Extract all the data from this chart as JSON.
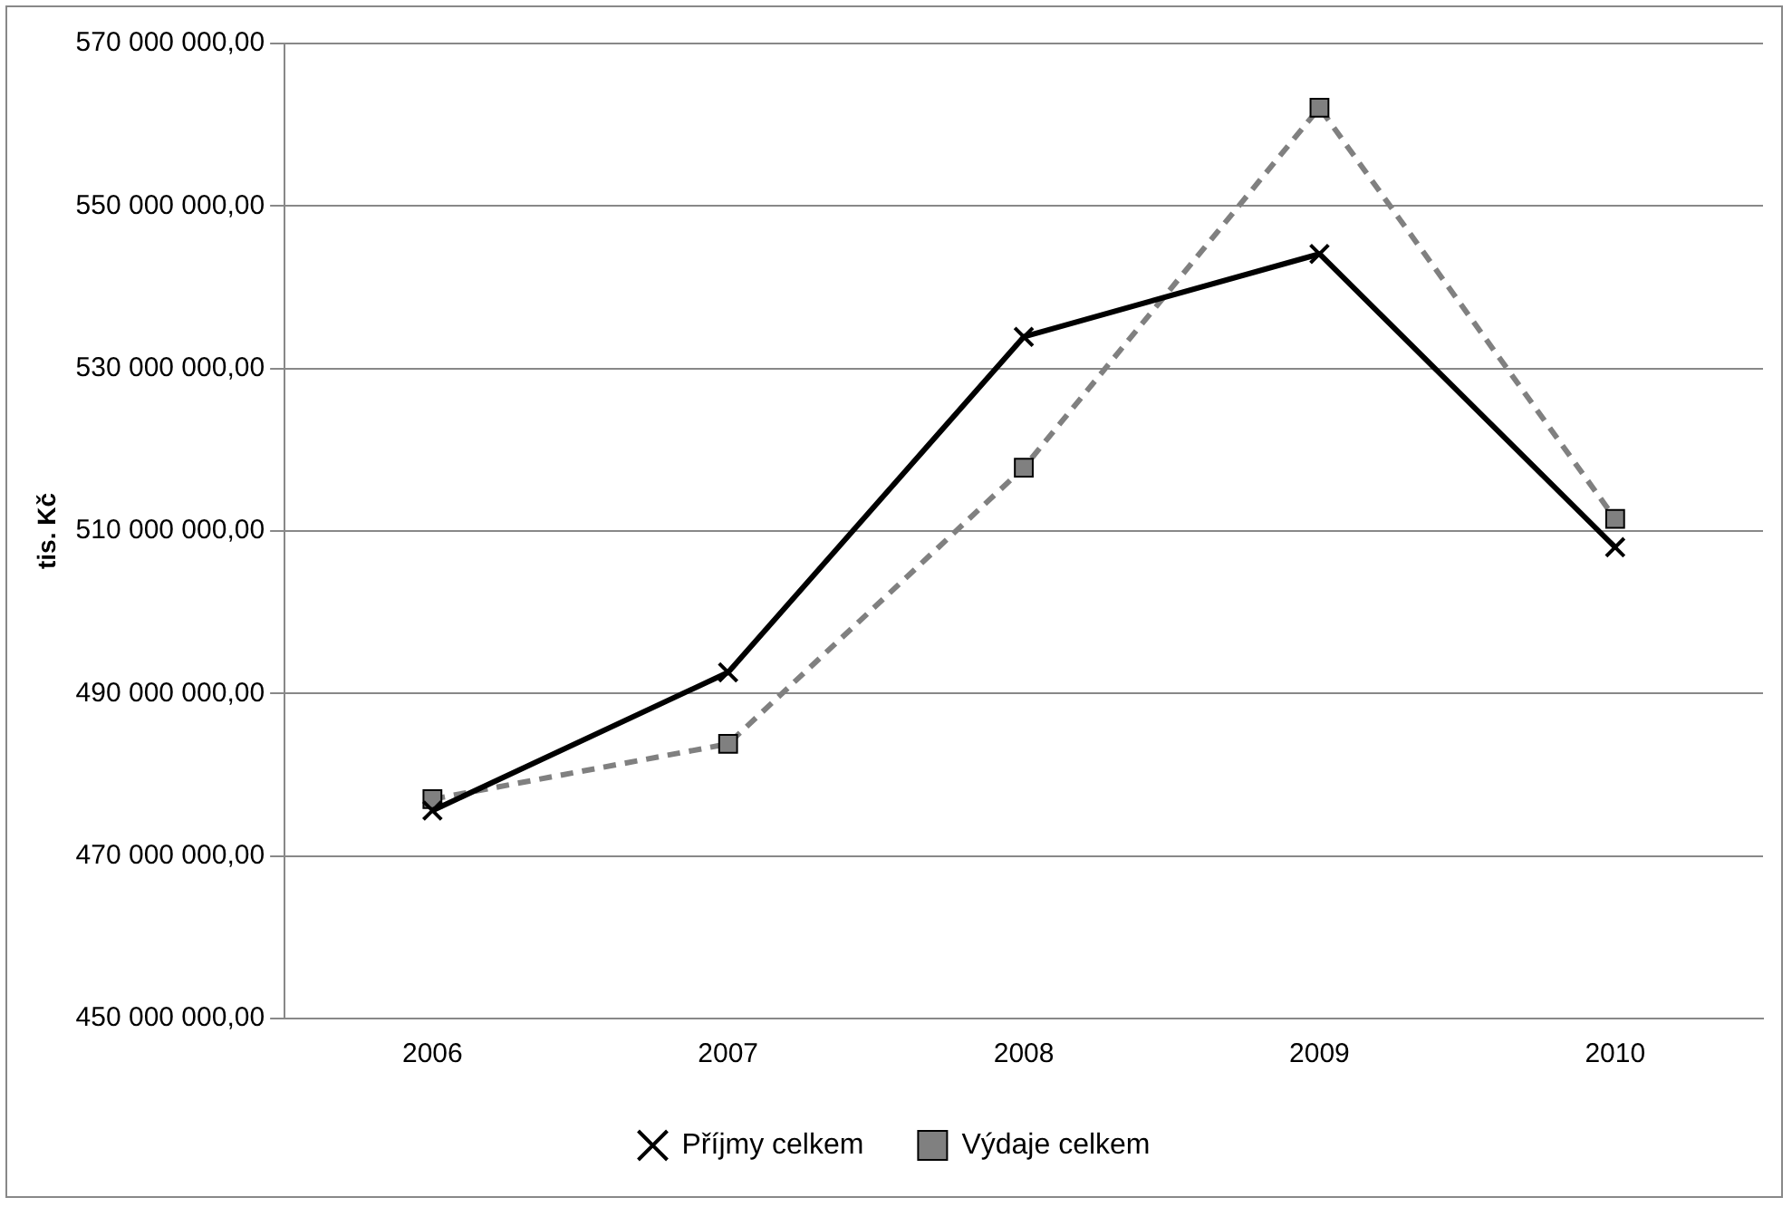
{
  "chart_data": {
    "type": "line",
    "ylabel": "tis. Kč",
    "categories": [
      "2006",
      "2007",
      "2008",
      "2009",
      "2010"
    ],
    "series": [
      {
        "name": "Příjmy celkem",
        "color": "#000000",
        "marker": "cross",
        "line_style": "solid",
        "values": [
          475600000,
          492600000,
          533900000,
          544100000,
          508000000
        ]
      },
      {
        "name": "Výdaje celkem",
        "color": "#808080",
        "marker": "square",
        "line_style": "dashed",
        "values": [
          477000000,
          483800000,
          517800000,
          562100000,
          511500000
        ]
      }
    ],
    "ylim": [
      450000000,
      570000000
    ],
    "yticks": [
      {
        "value": 450000000,
        "label": "450 000 000,00"
      },
      {
        "value": 470000000,
        "label": "470 000 000,00"
      },
      {
        "value": 490000000,
        "label": "490 000 000,00"
      },
      {
        "value": 510000000,
        "label": "510 000 000,00"
      },
      {
        "value": 530000000,
        "label": "530 000 000,00"
      },
      {
        "value": 550000000,
        "label": "550 000 000,00"
      },
      {
        "value": 570000000,
        "label": "570 000 000,00"
      }
    ],
    "grid": "y",
    "legend": "bottom"
  }
}
